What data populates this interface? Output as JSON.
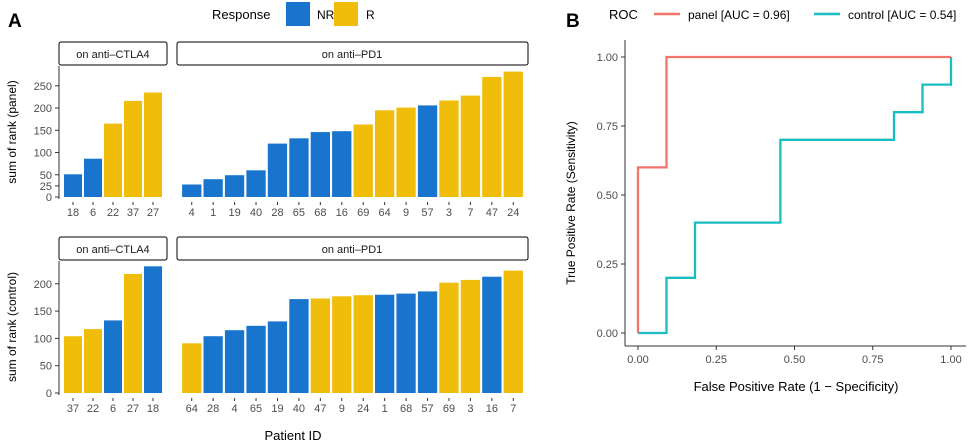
{
  "colors": {
    "NR": "#1874CD",
    "R": "#F0BD0A",
    "panel": "#F3746B",
    "control": "#19BEC3",
    "strip_bg": "#FFFFFF",
    "axis": "#333333"
  },
  "panel_labels": {
    "a": "A",
    "b": "B"
  },
  "legend_a": {
    "title": "Response",
    "items": [
      {
        "key": "NR",
        "label": "NR"
      },
      {
        "key": "R",
        "label": "R"
      }
    ]
  },
  "axis_titles": {
    "x_a": "Patient ID",
    "y_top": "sum of rank (panel)",
    "y_bottom": "sum of rank (control)"
  },
  "chart_data": [
    {
      "type": "bar",
      "id": "panel-ctla4",
      "title": "on anti–CTLA4",
      "ylabel": "sum of rank (panel)",
      "ylim": [
        0,
        290
      ],
      "yticks": [
        0,
        25,
        50,
        100,
        150,
        200,
        250
      ],
      "categories": [
        "18",
        "6",
        "22",
        "37",
        "27"
      ],
      "values": [
        51,
        86,
        165,
        216,
        235
      ],
      "groups": [
        "NR",
        "NR",
        "R",
        "R",
        "R"
      ]
    },
    {
      "type": "bar",
      "id": "panel-pd1",
      "title": "on anti–PD1",
      "ylabel": "sum of rank (panel)",
      "ylim": [
        0,
        290
      ],
      "yticks": [
        0,
        25,
        50,
        100,
        150,
        200,
        250
      ],
      "categories": [
        "4",
        "1",
        "19",
        "40",
        "28",
        "65",
        "68",
        "16",
        "69",
        "64",
        "9",
        "57",
        "3",
        "7",
        "47",
        "24"
      ],
      "values": [
        28,
        40,
        49,
        60,
        120,
        132,
        146,
        148,
        163,
        195,
        201,
        206,
        217,
        228,
        270,
        282
      ],
      "groups": [
        "NR",
        "NR",
        "NR",
        "NR",
        "NR",
        "NR",
        "NR",
        "NR",
        "R",
        "R",
        "R",
        "NR",
        "R",
        "R",
        "R",
        "R"
      ]
    },
    {
      "type": "bar",
      "id": "control-ctla4",
      "title": "on anti–CTLA4",
      "ylabel": "sum of rank (control)",
      "ylim": [
        0,
        238
      ],
      "yticks": [
        0,
        50,
        100,
        150,
        200
      ],
      "categories": [
        "37",
        "22",
        "6",
        "27",
        "18"
      ],
      "values": [
        104,
        117,
        133,
        218,
        232
      ],
      "groups": [
        "R",
        "R",
        "NR",
        "R",
        "NR"
      ]
    },
    {
      "type": "bar",
      "id": "control-pd1",
      "title": "on anti–PD1",
      "ylabel": "sum of rank (control)",
      "ylim": [
        0,
        238
      ],
      "yticks": [
        0,
        50,
        100,
        150,
        200
      ],
      "categories": [
        "64",
        "28",
        "4",
        "65",
        "19",
        "40",
        "47",
        "9",
        "24",
        "1",
        "68",
        "57",
        "69",
        "3",
        "16",
        "7"
      ],
      "values": [
        91,
        104,
        115,
        123,
        131,
        172,
        173,
        177,
        179,
        180,
        182,
        186,
        202,
        207,
        213,
        224
      ],
      "groups": [
        "R",
        "NR",
        "NR",
        "NR",
        "NR",
        "NR",
        "R",
        "R",
        "R",
        "NR",
        "NR",
        "NR",
        "R",
        "R",
        "NR",
        "R"
      ]
    },
    {
      "type": "line",
      "id": "roc",
      "title": "ROC",
      "xlabel": "False Positive Rate (1 − Specificity)",
      "ylabel": "True Positive Rate (Sensitivity)",
      "xlim": [
        0,
        1
      ],
      "ylim": [
        0,
        1
      ],
      "xticks": [
        "0.00",
        "0.25",
        "0.50",
        "0.75",
        "1.00"
      ],
      "yticks": [
        "0.00",
        "0.25",
        "0.50",
        "0.75",
        "1.00"
      ],
      "series": [
        {
          "name": "panel",
          "label": "panel [AUC = 0.96]",
          "x": [
            0,
            0,
            0.091,
            0.091,
            1
          ],
          "y": [
            0,
            0.6,
            0.6,
            1.0,
            1.0
          ]
        },
        {
          "name": "control",
          "label": "control [AUC = 0.54]",
          "x": [
            0,
            0.091,
            0.091,
            0.182,
            0.182,
            0.455,
            0.455,
            0.818,
            0.818,
            0.909,
            0.909,
            1.0,
            1.0
          ],
          "y": [
            0,
            0,
            0.2,
            0.2,
            0.4,
            0.4,
            0.7,
            0.7,
            0.8,
            0.8,
            0.9,
            0.9,
            1.0
          ]
        }
      ]
    }
  ]
}
